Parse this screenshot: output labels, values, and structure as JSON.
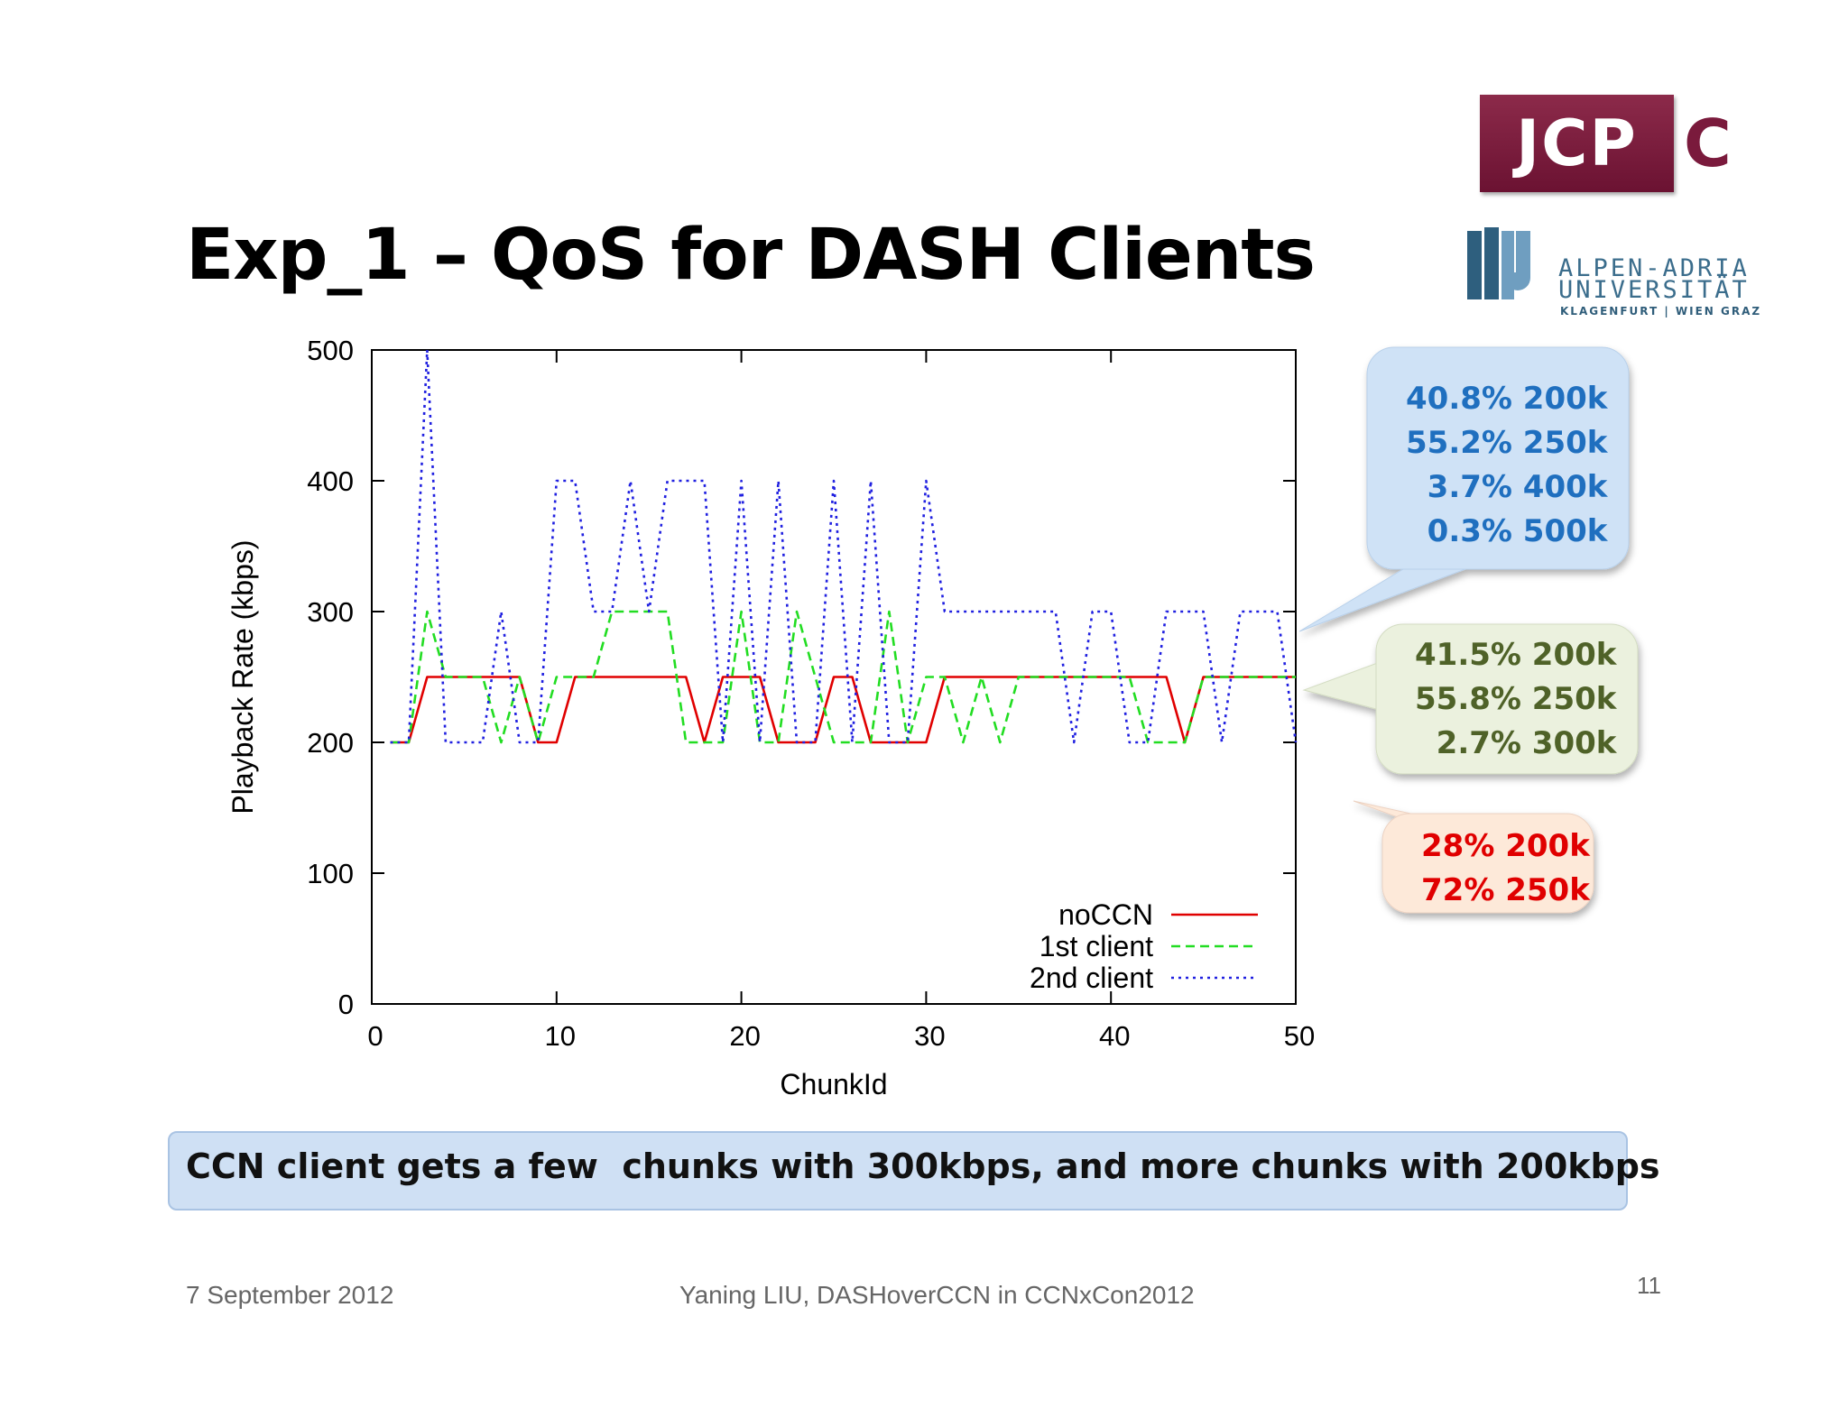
{
  "slide": {
    "title": "Exp_1 – QoS for DASH Clients",
    "footer_date": "7 September 2012",
    "footer_author": "Yaning LIU, DASHoverCCN in CCNxCon2012",
    "page_number": "11",
    "conclusion": "CCN client gets a few  chunks with 300kbps, and more chunks with 200kbps"
  },
  "logos": {
    "jcp_text": "JCP",
    "jcp_suffix": "C",
    "uni_line1": "ALPEN-ADRIA",
    "uni_line2": "UNIVERSITÄT",
    "uni_line3": "KLAGENFURT | WIEN GRAZ"
  },
  "callouts": {
    "second_client": {
      "lines": [
        "40.8% 200k",
        "55.2% 250k",
        "  3.7% 400k",
        "  0.3% 500k"
      ],
      "color": "#1f6fbf",
      "fill": "#cfe2f6"
    },
    "first_client": {
      "lines": [
        "41.5% 200k",
        "55.8% 250k",
        "  2.7% 300k"
      ],
      "color": "#4f6228",
      "fill": "#ebf1de"
    },
    "noccn": {
      "lines": [
        "28% 200k",
        "72% 250k"
      ],
      "color": "#e00000",
      "fill": "#fde9d9"
    }
  },
  "chart_data": {
    "type": "line",
    "xlabel": "ChunkId",
    "ylabel": "Playback Rate (kbps)",
    "xlim": [
      0,
      50
    ],
    "ylim": [
      0,
      500
    ],
    "xticks": [
      0,
      10,
      20,
      30,
      40,
      50
    ],
    "yticks": [
      0,
      100,
      200,
      300,
      400,
      500
    ],
    "legend_position": "bottom-right",
    "series": [
      {
        "name": "noCCN",
        "color": "#e00000",
        "dash": "solid",
        "x": [
          1,
          2,
          3,
          4,
          5,
          6,
          7,
          8,
          9,
          10,
          11,
          12,
          13,
          14,
          15,
          16,
          17,
          18,
          19,
          20,
          21,
          22,
          23,
          24,
          25,
          26,
          27,
          28,
          29,
          30,
          31,
          32,
          33,
          34,
          35,
          36,
          37,
          38,
          39,
          40,
          41,
          42,
          43,
          44,
          45,
          46,
          47,
          48,
          49,
          50
        ],
        "y": [
          200,
          200,
          250,
          250,
          250,
          250,
          250,
          250,
          200,
          200,
          250,
          250,
          250,
          250,
          250,
          250,
          250,
          200,
          250,
          250,
          250,
          200,
          200,
          200,
          250,
          250,
          200,
          200,
          200,
          200,
          250,
          250,
          250,
          250,
          250,
          250,
          250,
          250,
          250,
          250,
          250,
          250,
          250,
          200,
          250,
          250,
          250,
          250,
          250,
          250
        ]
      },
      {
        "name": "1st client",
        "color": "#22dd22",
        "dash": "10,6",
        "x": [
          1,
          2,
          3,
          4,
          5,
          6,
          7,
          8,
          9,
          10,
          11,
          12,
          13,
          14,
          15,
          16,
          17,
          18,
          19,
          20,
          21,
          22,
          23,
          24,
          25,
          26,
          27,
          28,
          29,
          30,
          31,
          32,
          33,
          34,
          35,
          36,
          37,
          38,
          39,
          40,
          41,
          42,
          43,
          44,
          45,
          46,
          47,
          48,
          49,
          50
        ],
        "y": [
          200,
          200,
          300,
          250,
          250,
          250,
          200,
          250,
          200,
          250,
          250,
          250,
          300,
          300,
          300,
          300,
          200,
          200,
          200,
          300,
          200,
          200,
          300,
          250,
          200,
          200,
          200,
          300,
          200,
          250,
          250,
          200,
          250,
          200,
          250,
          250,
          250,
          250,
          250,
          250,
          250,
          200,
          200,
          200,
          250,
          250,
          250,
          250,
          250,
          250
        ]
      },
      {
        "name": "2nd client",
        "color": "#2020e0",
        "dash": "3,5",
        "x": [
          1,
          2,
          3,
          4,
          5,
          6,
          7,
          8,
          9,
          10,
          11,
          12,
          13,
          14,
          15,
          16,
          17,
          18,
          19,
          20,
          21,
          22,
          23,
          24,
          25,
          26,
          27,
          28,
          29,
          30,
          31,
          32,
          33,
          34,
          35,
          36,
          37,
          38,
          39,
          40,
          41,
          42,
          43,
          44,
          45,
          46,
          47,
          48,
          49,
          50
        ],
        "y": [
          200,
          200,
          500,
          200,
          200,
          200,
          300,
          200,
          200,
          400,
          400,
          300,
          300,
          400,
          300,
          400,
          400,
          400,
          200,
          400,
          200,
          400,
          200,
          200,
          400,
          200,
          400,
          200,
          200,
          400,
          300,
          300,
          300,
          300,
          300,
          300,
          300,
          200,
          300,
          300,
          200,
          200,
          300,
          300,
          300,
          200,
          300,
          300,
          300,
          200
        ]
      }
    ]
  }
}
